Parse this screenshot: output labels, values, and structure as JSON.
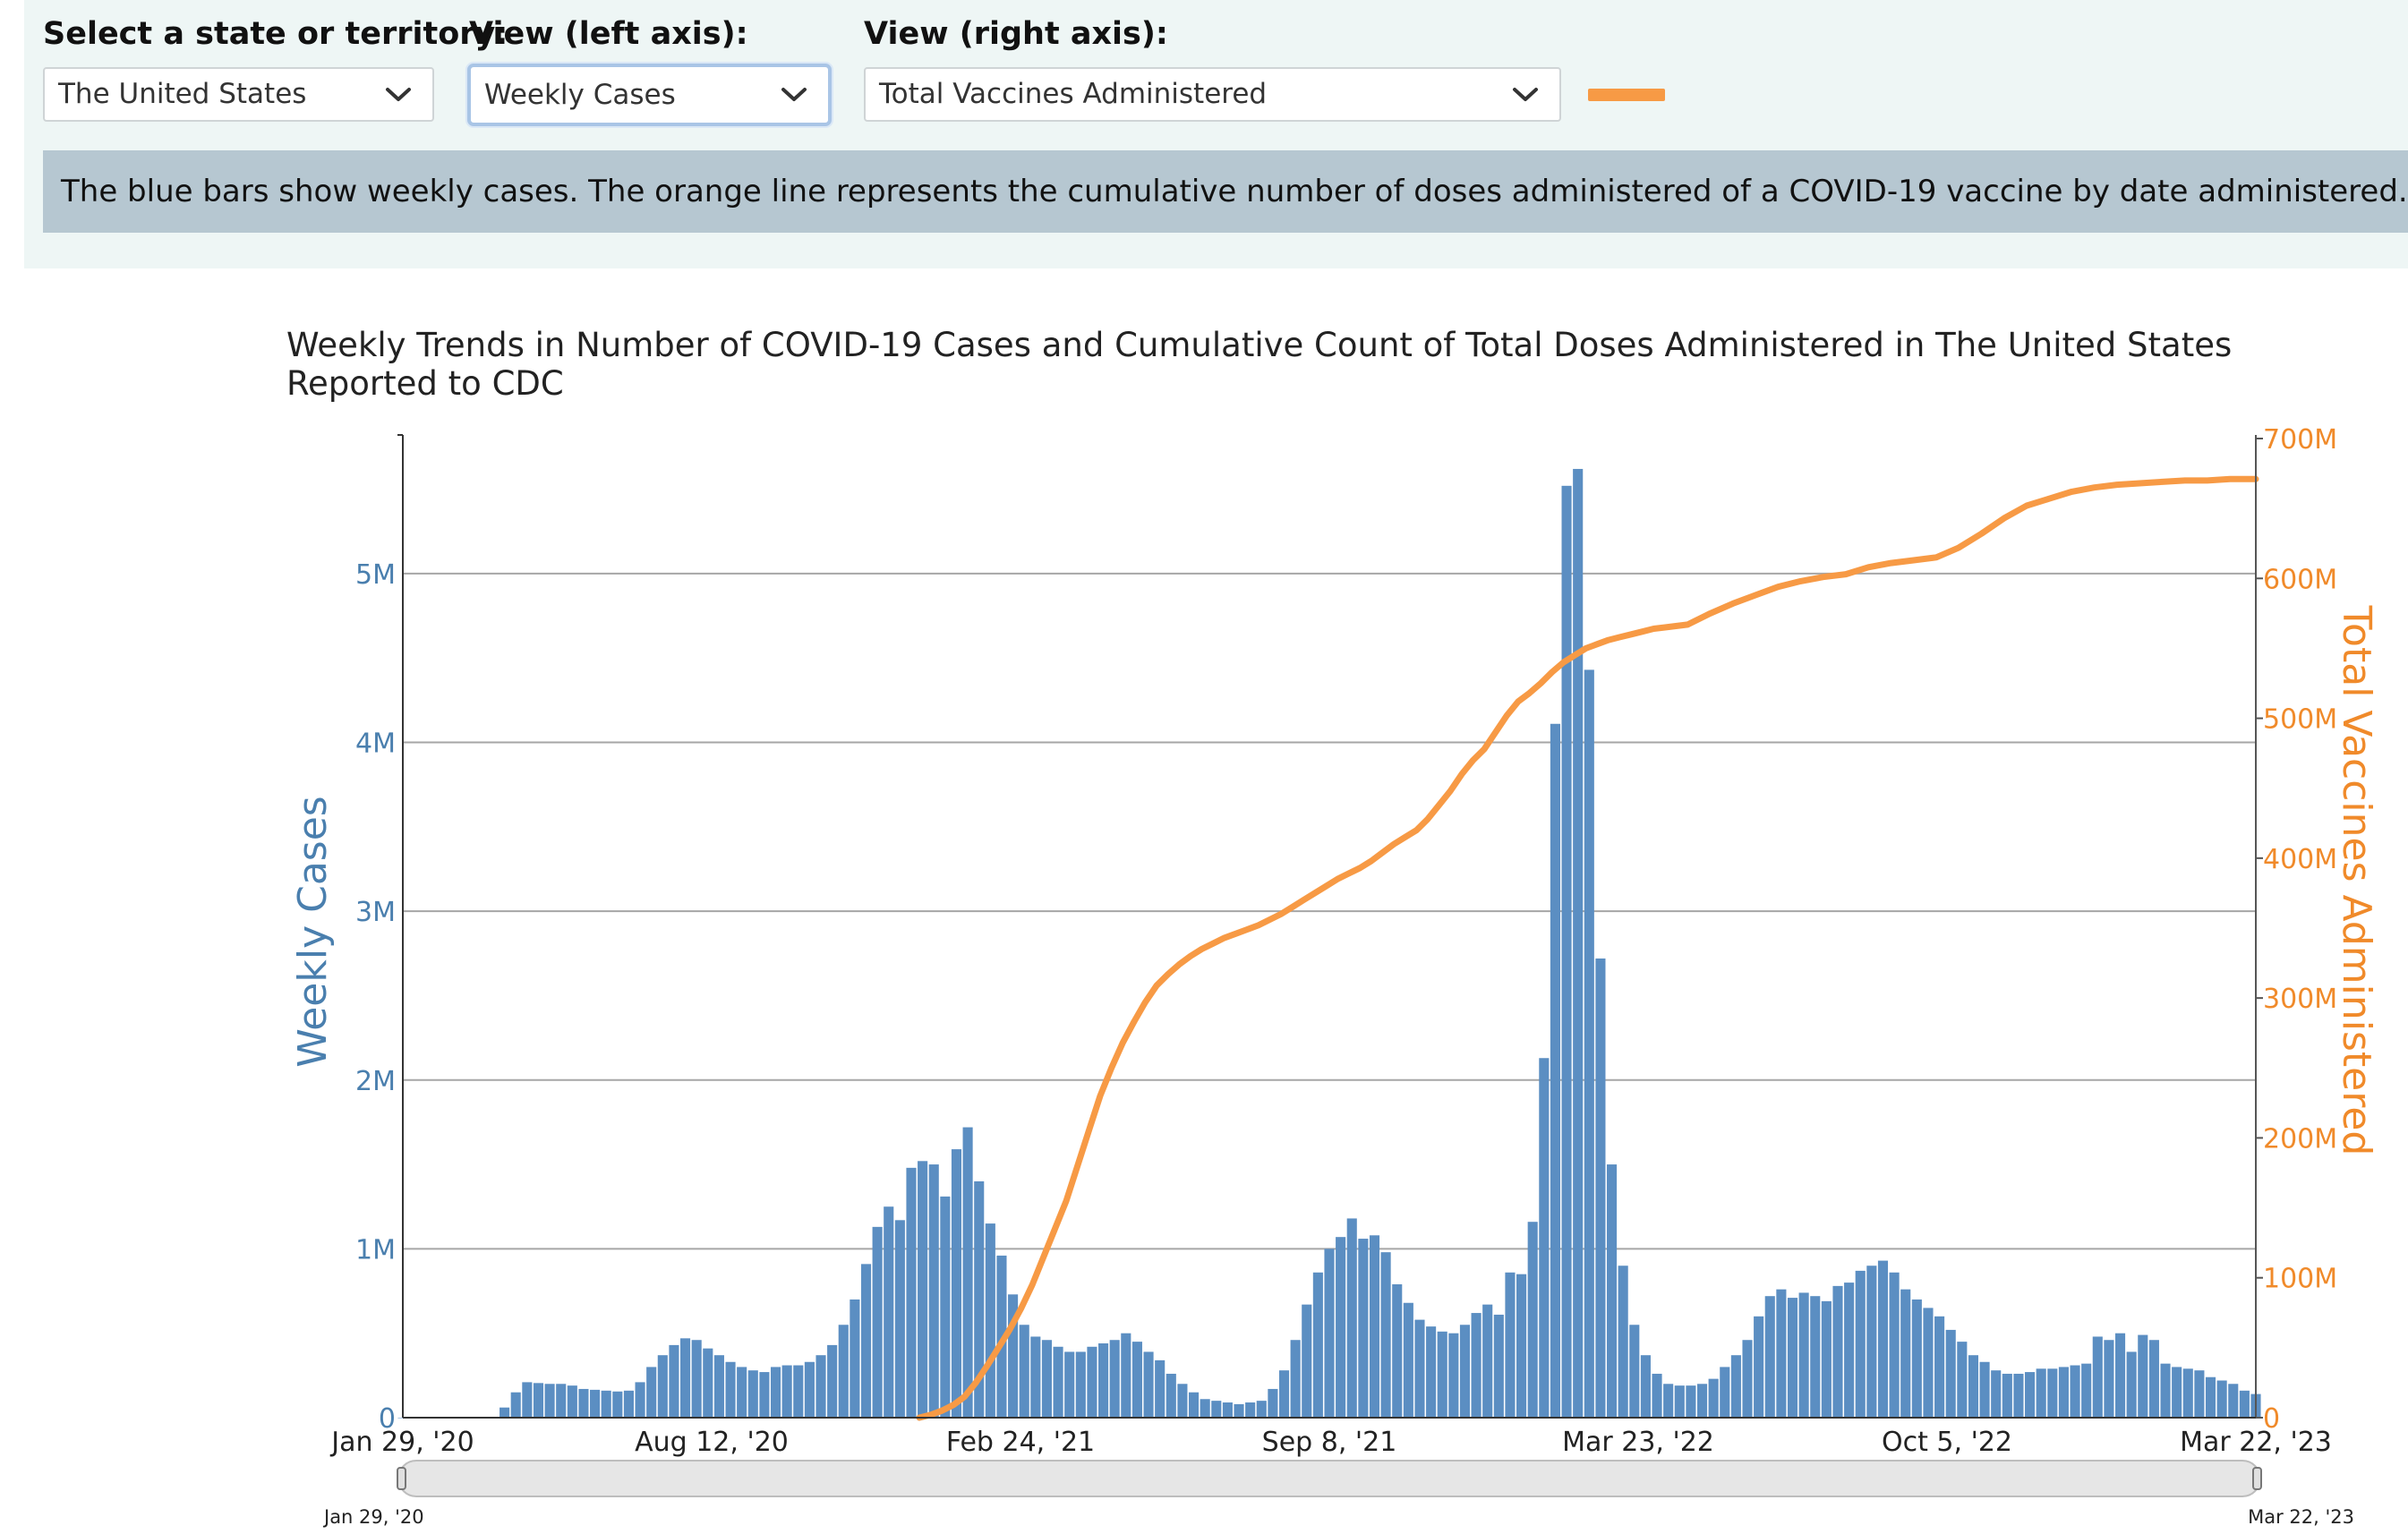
{
  "controls": {
    "state_label": "Select a state or territory:",
    "state_value": "The United States",
    "left_axis_label": "View (left axis):",
    "left_axis_value": "Weekly Cases",
    "right_axis_label": "View (right axis):",
    "right_axis_value": "Total Vaccines Administered",
    "legend_color": "#f79a45"
  },
  "info_text": "The blue bars show weekly cases. The orange line represents the cumulative number of doses administered of a COVID-19 vaccine by date administered.",
  "chart_data": {
    "type": "bar",
    "title": "Weekly Trends in Number of COVID-19 Cases and Cumulative Count of Total Doses Administered in The United States Reported to CDC",
    "ylabel": "Weekly Cases",
    "y2label": "Total Vaccines Administered",
    "ylim": [
      0,
      5800000
    ],
    "y2lim": [
      0,
      700000000
    ],
    "y_ticks": [
      "0",
      "1M",
      "2M",
      "3M",
      "4M",
      "5M"
    ],
    "y2_ticks": [
      "0",
      "100M",
      "200M",
      "300M",
      "400M",
      "500M",
      "600M",
      "700M"
    ],
    "x_ticks": [
      "Jan 29, '20",
      "Aug 12, '20",
      "Feb 24, '21",
      "Sep 8, '21",
      "Mar 23, '22",
      "Oct 5, '22",
      "Mar 22, '23"
    ],
    "range_slider": {
      "start": "Jan 29, '20",
      "end": "Mar 22, '23"
    },
    "grid": true,
    "bar_color": "#5b8ec2",
    "line_color": "#f79a45",
    "series": [
      {
        "type": "bar",
        "start_date": "2020-01-29",
        "interval_days": 7,
        "values": [
          100,
          100,
          100,
          100,
          100,
          100,
          100,
          100,
          5000,
          60000,
          150000,
          210000,
          205000,
          200000,
          200000,
          190000,
          170000,
          165000,
          160000,
          155000,
          160000,
          210000,
          300000,
          370000,
          430000,
          470000,
          460000,
          410000,
          370000,
          330000,
          300000,
          280000,
          270000,
          300000,
          310000,
          310000,
          330000,
          370000,
          430000,
          550000,
          700000,
          910000,
          1130000,
          1250000,
          1170000,
          1480000,
          1520000,
          1500000,
          1310000,
          1590000,
          1720000,
          1400000,
          1150000,
          960000,
          730000,
          550000,
          480000,
          460000,
          420000,
          390000,
          390000,
          420000,
          440000,
          460000,
          500000,
          450000,
          390000,
          340000,
          260000,
          200000,
          150000,
          110000,
          100000,
          90000,
          80000,
          90000,
          100000,
          170000,
          280000,
          460000,
          670000,
          860000,
          1000000,
          1070000,
          1180000,
          1060000,
          1080000,
          980000,
          790000,
          680000,
          580000,
          540000,
          510000,
          500000,
          550000,
          620000,
          670000,
          610000,
          860000,
          850000,
          1160000,
          2130000,
          4110000,
          5520000,
          5620000,
          4430000,
          2720000,
          1500000,
          900000,
          550000,
          370000,
          260000,
          200000,
          190000,
          190000,
          200000,
          230000,
          300000,
          370000,
          460000,
          600000,
          720000,
          760000,
          710000,
          740000,
          720000,
          690000,
          780000,
          800000,
          870000,
          900000,
          930000,
          860000,
          760000,
          700000,
          650000,
          600000,
          520000,
          450000,
          370000,
          330000,
          280000,
          260000,
          260000,
          270000,
          290000,
          290000,
          300000,
          310000,
          320000,
          480000,
          460000,
          500000,
          390000,
          490000,
          460000,
          320000,
          300000,
          290000,
          280000,
          240000,
          220000,
          200000,
          160000,
          140000
        ]
      },
      {
        "type": "line",
        "dates": [
          "2020-12-14",
          "2020-12-21",
          "2020-12-28",
          "2021-01-04",
          "2021-01-11",
          "2021-01-18",
          "2021-01-25",
          "2021-02-01",
          "2021-02-08",
          "2021-02-15",
          "2021-02-22",
          "2021-03-01",
          "2021-03-08",
          "2021-03-15",
          "2021-03-22",
          "2021-03-29",
          "2021-04-05",
          "2021-04-12",
          "2021-04-19",
          "2021-04-26",
          "2021-05-03",
          "2021-05-10",
          "2021-05-17",
          "2021-05-24",
          "2021-05-31",
          "2021-06-07",
          "2021-06-14",
          "2021-06-21",
          "2021-06-28",
          "2021-07-05",
          "2021-07-12",
          "2021-07-19",
          "2021-07-26",
          "2021-08-02",
          "2021-08-09",
          "2021-08-16",
          "2021-08-23",
          "2021-08-30",
          "2021-09-06",
          "2021-09-13",
          "2021-09-20",
          "2021-09-27",
          "2021-10-04",
          "2021-10-11",
          "2021-10-18",
          "2021-10-25",
          "2021-11-01",
          "2021-11-08",
          "2021-11-15",
          "2021-11-22",
          "2021-11-29",
          "2021-12-06",
          "2021-12-13",
          "2021-12-20",
          "2021-12-27",
          "2022-01-03",
          "2022-01-10",
          "2022-01-17",
          "2022-01-24",
          "2022-01-31",
          "2022-02-07",
          "2022-02-14",
          "2022-02-21",
          "2022-02-28",
          "2022-03-07",
          "2022-03-14",
          "2022-03-21",
          "2022-04-04",
          "2022-04-18",
          "2022-05-02",
          "2022-05-16",
          "2022-05-30",
          "2022-06-13",
          "2022-06-27",
          "2022-07-11",
          "2022-07-25",
          "2022-08-08",
          "2022-08-22",
          "2022-09-05",
          "2022-09-19",
          "2022-10-03",
          "2022-10-17",
          "2022-10-31",
          "2022-11-14",
          "2022-11-28",
          "2022-12-12",
          "2022-12-26",
          "2023-01-09",
          "2023-01-23",
          "2023-02-06",
          "2023-02-20",
          "2023-03-06",
          "2023-03-22"
        ],
        "values": [
          0,
          2000000,
          5000000,
          9000000,
          15000000,
          25000000,
          37000000,
          50000000,
          63000000,
          78000000,
          95000000,
          115000000,
          135000000,
          155000000,
          180000000,
          205000000,
          230000000,
          250000000,
          268000000,
          283000000,
          297000000,
          309000000,
          317000000,
          324000000,
          330000000,
          335000000,
          339000000,
          343000000,
          346000000,
          349000000,
          352000000,
          356000000,
          360000000,
          365000000,
          370000000,
          375000000,
          380000000,
          385000000,
          389000000,
          393000000,
          398000000,
          404000000,
          410000000,
          415000000,
          420000000,
          428000000,
          438000000,
          448000000,
          460000000,
          470000000,
          478000000,
          490000000,
          502000000,
          512000000,
          518000000,
          525000000,
          533000000,
          540000000,
          545000000,
          550000000,
          553000000,
          556000000,
          558000000,
          560000000,
          562000000,
          564000000,
          565000000,
          567000000,
          575000000,
          582000000,
          588000000,
          594000000,
          598000000,
          601000000,
          603000000,
          608000000,
          611000000,
          613000000,
          615000000,
          622000000,
          632000000,
          643000000,
          652000000,
          657000000,
          662000000,
          665000000,
          667000000,
          668000000,
          669000000,
          670000000,
          670000000,
          671000000,
          671000000
        ]
      }
    ]
  }
}
